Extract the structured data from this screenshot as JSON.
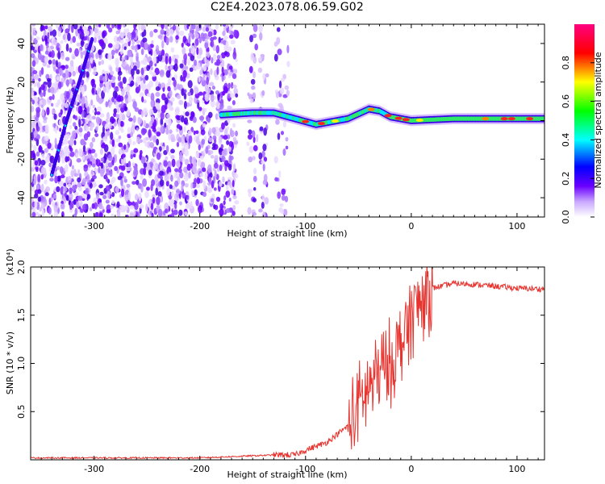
{
  "title": "C2E4.2023.078.06.59.G02",
  "chart_data": [
    {
      "type": "heatmap",
      "xlabel": "Height of straight line (km)",
      "ylabel": "Frequency (Hz)",
      "xlim": [
        -360,
        126
      ],
      "ylim": [
        -50,
        50
      ],
      "x_ticks": [
        -300,
        -200,
        -100,
        0,
        100
      ],
      "y_ticks": [
        -40,
        -20,
        0,
        20,
        40
      ],
      "colorbar": {
        "label": "Normalized spectral amplitude",
        "range": [
          0,
          1
        ],
        "ticks": [
          0.0,
          0.2,
          0.4,
          0.6,
          0.8
        ],
        "colors": [
          "#ffffff",
          "#6a00ff",
          "#0000ff",
          "#00ffff",
          "#00ff00",
          "#ffff00",
          "#ff0000",
          "#ff0080"
        ]
      },
      "features": {
        "broadband_noise_x": [
          -360,
          -110
        ],
        "diagonal_trace": [
          [
            -340,
            -28
          ],
          [
            -326,
            0
          ],
          [
            -314,
            20
          ],
          [
            -302,
            42
          ]
        ],
        "ridge": [
          [
            -180,
            3
          ],
          [
            -150,
            4
          ],
          [
            -130,
            4
          ],
          [
            -110,
            1
          ],
          [
            -90,
            -2
          ],
          [
            -60,
            1
          ],
          [
            -40,
            6
          ],
          [
            -30,
            5
          ],
          [
            -20,
            2
          ],
          [
            0,
            0
          ],
          [
            40,
            1
          ],
          [
            80,
            1
          ],
          [
            100,
            1
          ],
          [
            126,
            1
          ]
        ]
      }
    },
    {
      "type": "line",
      "xlabel": "Height of straight line (km)",
      "ylabel": "SNR (10 * v/v)",
      "y_multiplier": "(x10⁴)",
      "xlim": [
        -360,
        126
      ],
      "ylim": [
        0,
        2.0
      ],
      "x_ticks": [
        -300,
        -200,
        -100,
        0,
        100
      ],
      "y_ticks": [
        0.5,
        1.0,
        1.5,
        2.0
      ],
      "color": "#e8332e",
      "series": [
        {
          "x": [
            -360,
            -300,
            -200,
            -130,
            -110,
            -100,
            -80,
            -60,
            -50,
            -40,
            -30,
            -20,
            -10,
            0,
            10,
            20,
            40,
            60,
            80,
            100,
            126
          ],
          "y": [
            0.02,
            0.02,
            0.02,
            0.05,
            0.05,
            0.1,
            0.18,
            0.35,
            0.55,
            0.75,
            0.9,
            1.0,
            1.2,
            1.5,
            1.65,
            1.78,
            1.83,
            1.82,
            1.8,
            1.78,
            1.77
          ]
        }
      ]
    }
  ]
}
